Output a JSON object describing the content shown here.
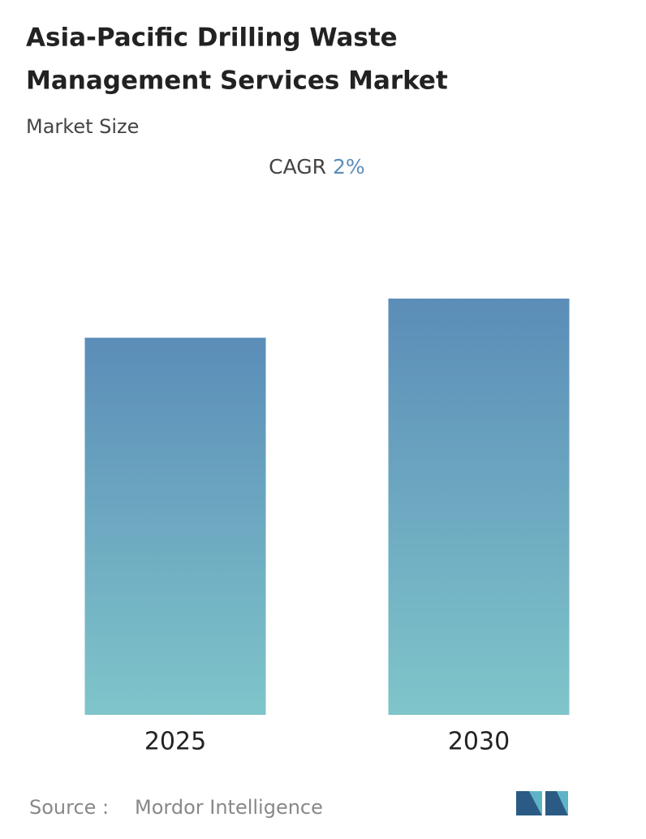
{
  "chart_data": {
    "type": "bar",
    "title": [
      "Asia-Pacific Drilling Waste",
      "Management Services Market"
    ],
    "subtitle": "Market Size",
    "cagr_label": "CAGR",
    "cagr_value": "2%",
    "categories": [
      "2025",
      "2030"
    ],
    "values": [
      90.6,
      100
    ],
    "ylim": [
      0,
      100
    ],
    "color": [
      "#5b8db8",
      "#7fc5ca"
    ],
    "source_label": "Source :",
    "source": "Mordor Intelligence"
  }
}
